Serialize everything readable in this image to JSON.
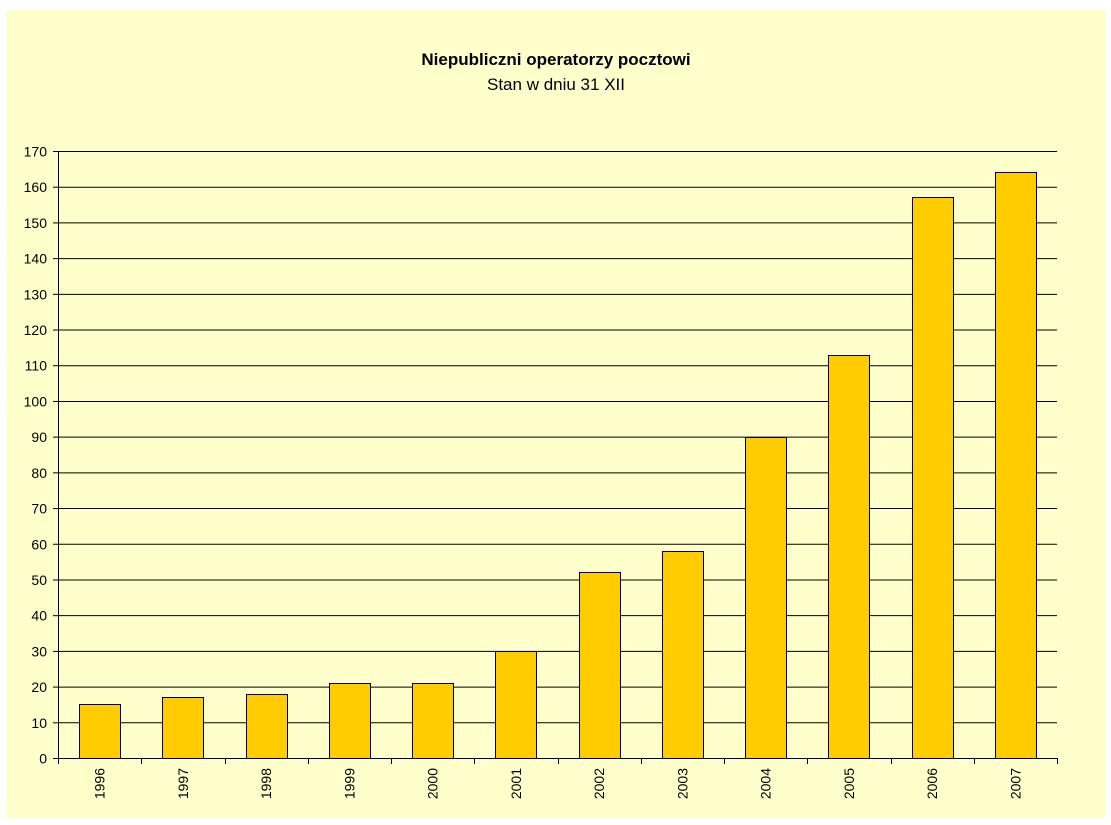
{
  "chart_data": {
    "type": "bar",
    "title": "Niepubliczni operatorzy pocztowi",
    "subtitle": "Stan w  dniu 31 XII",
    "xlabel": "",
    "ylabel": "",
    "categories": [
      "1996",
      "1997",
      "1998",
      "1999",
      "2000",
      "2001",
      "2002",
      "2003",
      "2004",
      "2005",
      "2006",
      "2007"
    ],
    "values": [
      15,
      17,
      18,
      21,
      21,
      30,
      52,
      58,
      90,
      113,
      157,
      164
    ],
    "ylim": [
      0,
      170
    ],
    "yticks": [
      0,
      10,
      20,
      30,
      40,
      50,
      60,
      70,
      80,
      90,
      100,
      110,
      120,
      130,
      140,
      150,
      160,
      170
    ],
    "grid": true,
    "legend": "none",
    "colors": {
      "background": "#ffffcc",
      "bar": "#ffcc00",
      "bar_stroke": "#000000",
      "grid": "#000000"
    }
  }
}
